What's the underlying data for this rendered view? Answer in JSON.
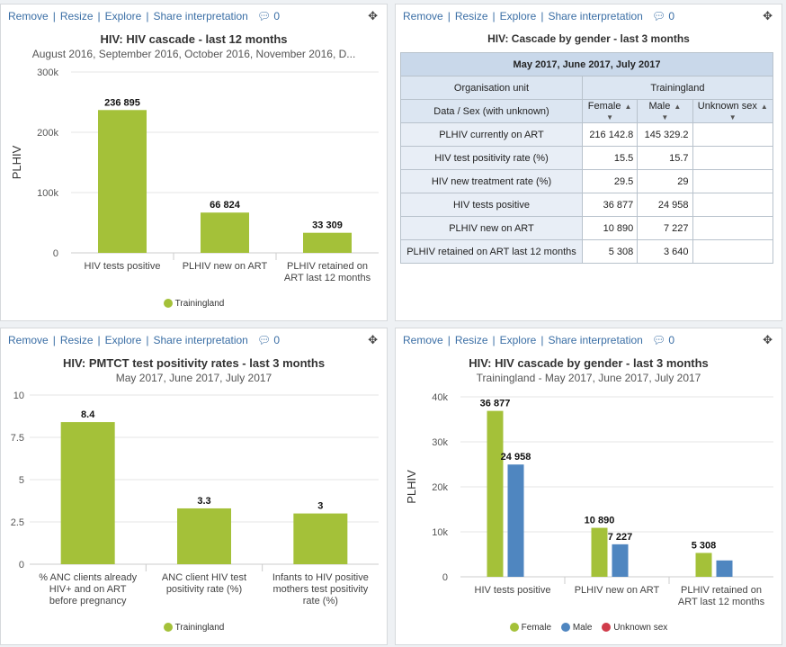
{
  "toolbar": {
    "remove": "Remove",
    "resize": "Resize",
    "explore": "Explore",
    "share": "Share interpretation",
    "comments": "0",
    "sep": "|"
  },
  "colors": {
    "female": "#a4c139",
    "male": "#4f86c0",
    "unknown": "#d03c4a"
  },
  "panel1": {
    "title": "HIV: HIV cascade - last 12 months",
    "subtitle": "August 2016, September 2016, October 2016, November 2016, D...",
    "legend": "Trainingland",
    "chart_data": {
      "type": "bar",
      "title": "HIV: HIV cascade - last 12 months",
      "ylabel": "PLHIV",
      "ylim": [
        0,
        300000
      ],
      "yticks": [
        "0",
        "100k",
        "200k",
        "300k"
      ],
      "categories": [
        [
          "HIV tests positive"
        ],
        [
          "PLHIV new on ART"
        ],
        [
          "PLHIV retained on",
          "ART last 12 months"
        ]
      ],
      "series": [
        {
          "name": "Trainingland",
          "values": [
            236895,
            66824,
            33309
          ],
          "labels": [
            "236 895",
            "66 824",
            "33 309"
          ]
        }
      ]
    }
  },
  "panel2": {
    "title": "HIV: Cascade by gender - last 3 months",
    "period": "May 2017, June 2017, July 2017",
    "org_unit_label": "Organisation unit",
    "org_unit": "Trainingland",
    "data_sex_label": "Data / Sex (with unknown)",
    "columns": [
      "Female",
      "Male",
      "Unknown sex"
    ],
    "rows": [
      {
        "label": "PLHIV currently on ART",
        "values": [
          "216 142.8",
          "145 329.2",
          ""
        ]
      },
      {
        "label": "HIV test positivity rate (%)",
        "values": [
          "15.5",
          "15.7",
          ""
        ]
      },
      {
        "label": "HIV new treatment rate (%)",
        "values": [
          "29.5",
          "29",
          ""
        ]
      },
      {
        "label": "HIV tests positive",
        "values": [
          "36 877",
          "24 958",
          ""
        ]
      },
      {
        "label": "PLHIV new on ART",
        "values": [
          "10 890",
          "7 227",
          ""
        ]
      },
      {
        "label": "PLHIV retained on ART last 12 months",
        "values": [
          "5 308",
          "3 640",
          ""
        ]
      }
    ]
  },
  "panel3": {
    "title": "HIV: PMTCT test positivity rates - last 3 months",
    "subtitle": "May 2017, June 2017, July 2017",
    "legend": "Trainingland",
    "chart_data": {
      "type": "bar",
      "title": "HIV: PMTCT test positivity rates - last 3 months",
      "ylim": [
        0,
        10
      ],
      "yticks": [
        "0",
        "2.5",
        "5",
        "7.5",
        "10"
      ],
      "categories": [
        [
          "% ANC clients already",
          "HIV+ and on ART",
          "before pregnancy"
        ],
        [
          "ANC client HIV test",
          "positivity rate (%)"
        ],
        [
          "Infants to HIV positive",
          "mothers test positivity",
          "rate (%)"
        ]
      ],
      "series": [
        {
          "name": "Trainingland",
          "values": [
            8.4,
            3.3,
            3
          ],
          "labels": [
            "8.4",
            "3.3",
            "3"
          ]
        }
      ]
    }
  },
  "panel4": {
    "title": "HIV: HIV cascade by gender - last 3 months",
    "subtitle": "Trainingland - May 2017, June 2017, July 2017",
    "legend": [
      "Female",
      "Male",
      "Unknown sex"
    ],
    "chart_data": {
      "type": "bar",
      "title": "HIV: HIV cascade by gender - last 3 months",
      "ylabel": "PLHIV",
      "ylim": [
        0,
        40000
      ],
      "yticks": [
        "0",
        "10k",
        "20k",
        "30k",
        "40k"
      ],
      "categories": [
        [
          "HIV tests positive"
        ],
        [
          "PLHIV new on ART"
        ],
        [
          "PLHIV retained on",
          "ART last 12 months"
        ]
      ],
      "series": [
        {
          "name": "Female",
          "values": [
            36877,
            10890,
            5308
          ],
          "labels": [
            "36 877",
            "10 890",
            "5 308"
          ]
        },
        {
          "name": "Male",
          "values": [
            24958,
            7227,
            3640
          ],
          "labels": [
            "24 958",
            "7 227",
            ""
          ]
        }
      ]
    }
  }
}
